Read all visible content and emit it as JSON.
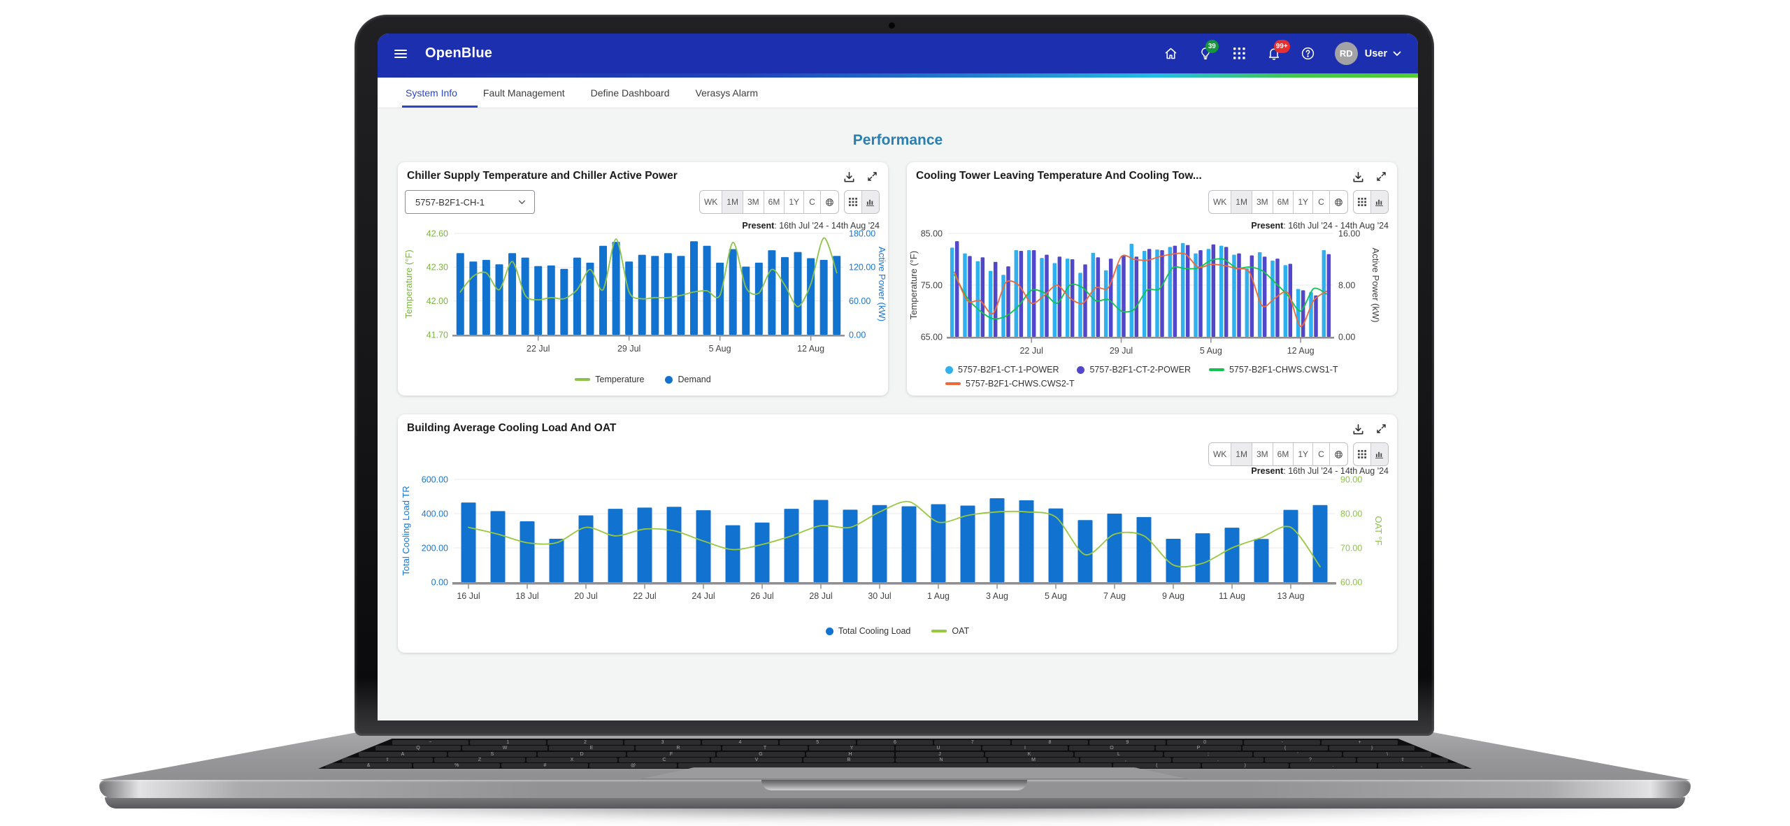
{
  "app": {
    "brand": "OpenBlue",
    "header": {
      "user_initials": "RD",
      "user_label": "User",
      "insights_badge": "39",
      "notifications_badge": "99+"
    },
    "tabs": [
      {
        "label": "System Info",
        "active": true
      },
      {
        "label": "Fault Management",
        "active": false
      },
      {
        "label": "Define Dashboard",
        "active": false
      },
      {
        "label": "Verasys Alarm",
        "active": false
      }
    ],
    "page_title": "Performance",
    "toolbar": {
      "ranges": [
        "WK",
        "1M",
        "3M",
        "6M",
        "1Y",
        "C"
      ],
      "selected_range": "1M",
      "present_label": "Present",
      "present_value": ": 16th Jul '24 - 14th Aug '24"
    },
    "colors": {
      "header_blue": "#1c2fae",
      "tab_active_blue": "#2b46c8",
      "page_title_teal": "#2a7fb0",
      "bar_blue": "#1272cf",
      "line_green": "#8bc34a"
    }
  },
  "chart_data": [
    {
      "id": "c1",
      "type": "bar",
      "title": "Chiller Supply Temperature and Chiller Active Power",
      "selector_value": "5757-B2F1-CH-1",
      "left_axis": {
        "title": "Temperature (°F)",
        "ticks": [
          "42.60",
          "42.30",
          "42.00",
          "41.70"
        ],
        "min": 41.7,
        "max": 42.6,
        "color": "#7cb342"
      },
      "right_axis": {
        "title": "Active Power (kW)",
        "ticks": [
          "180.00",
          "120.00",
          "60.00",
          "0.00"
        ],
        "min": 0,
        "max": 180,
        "color": "#1976d2"
      },
      "x_labels": [
        {
          "label": "22 Jul",
          "i": 6
        },
        {
          "label": "29 Jul",
          "i": 13
        },
        {
          "label": "5 Aug",
          "i": 20
        },
        {
          "label": "12 Aug",
          "i": 27
        }
      ],
      "series": [
        {
          "name": "Demand",
          "type": "bar",
          "axis": "right",
          "color": "#1272cf",
          "values": [
            145,
            130,
            133,
            125,
            145,
            137,
            122,
            123,
            117,
            137,
            128,
            158,
            165,
            130,
            142,
            140,
            145,
            140,
            166,
            158,
            128,
            152,
            121,
            128,
            150,
            138,
            147,
            136,
            133,
            140
          ]
        },
        {
          "name": "Temperature",
          "type": "line",
          "axis": "left",
          "color": "#8bc34a",
          "values": [
            42.08,
            42.22,
            42.25,
            42.1,
            42.35,
            42.05,
            42.01,
            42.03,
            42.02,
            42.1,
            42.28,
            42.1,
            42.55,
            42.08,
            42.02,
            42.03,
            42.03,
            42.05,
            42.08,
            42.09,
            42.05,
            42.52,
            42.12,
            42.07,
            42.28,
            42.14,
            41.95,
            42.15,
            42.56,
            42.25
          ]
        }
      ],
      "legend": [
        {
          "label": "Temperature",
          "marker": "line",
          "color": "#8bc34a"
        },
        {
          "label": "Demand",
          "marker": "dot",
          "color": "#1272cf"
        }
      ]
    },
    {
      "id": "c2",
      "type": "bar",
      "title": "Cooling Tower Leaving Temperature And Cooling Tow...",
      "left_axis": {
        "title": "Temperature (°F)",
        "ticks": [
          "85.00",
          "75.00",
          "65.00"
        ],
        "min": 65,
        "max": 85,
        "color": "#3f3f41"
      },
      "right_axis": {
        "title": "Active Power (kW)",
        "ticks": [
          "16.00",
          "8.00",
          "0.00"
        ],
        "min": 0,
        "max": 16,
        "color": "#3f3f41"
      },
      "x_labels": [
        {
          "label": "22 Jul",
          "i": 6
        },
        {
          "label": "29 Jul",
          "i": 13
        },
        {
          "label": "5 Aug",
          "i": 20
        },
        {
          "label": "12 Aug",
          "i": 27
        }
      ],
      "series": [
        {
          "name": "5757-B2F1-CT-1-POWER",
          "type": "bar",
          "axis": "right",
          "color": "#2fb1ef",
          "values": [
            13.8,
            12.9,
            11.7,
            10.2,
            9.6,
            13.4,
            13.4,
            12.2,
            11.4,
            12.1,
            9.9,
            13.0,
            10.3,
            11.2,
            14.4,
            13.3,
            13.5,
            13.9,
            14.5,
            12.9,
            13.6,
            14.1,
            12.7,
            10.6,
            13.1,
            11.8,
            11.1,
            7.4,
            6.9,
            13.4
          ]
        },
        {
          "name": "5757-B2F1-CT-2-POWER",
          "type": "bar",
          "axis": "right",
          "color": "#5247c9",
          "values": [
            14.8,
            12.5,
            12.3,
            11.6,
            10.9,
            13.3,
            13.4,
            12.7,
            12.4,
            12.0,
            11.2,
            12.3,
            12.1,
            12.6,
            12.4,
            13.6,
            13.4,
            14.1,
            14.2,
            13.4,
            14.3,
            13.9,
            12.9,
            12.6,
            12.4,
            12.1,
            11.3,
            7.2,
            6.4,
            12.8
          ]
        },
        {
          "name": "5757-B2F1-CHWS.CWS1-T",
          "type": "line",
          "axis": "left",
          "color": "#10c24e",
          "values": [
            77.0,
            72.5,
            70.0,
            68.5,
            69.0,
            71.0,
            74.0,
            73.5,
            71.5,
            75.0,
            74.5,
            72.0,
            72.2,
            70.0,
            70.3,
            74.0,
            74.3,
            78.3,
            78.2,
            78.3,
            79.8,
            80.0,
            78.3,
            78.5,
            77.8,
            75.5,
            73.0,
            70.0,
            74.3,
            73.3
          ]
        },
        {
          "name": "5757-B2F1-CHWS.CWS2-T",
          "type": "line",
          "axis": "left",
          "color": "#f0683a",
          "values": [
            77.5,
            72.0,
            72.0,
            69.5,
            75.5,
            75.0,
            71.5,
            73.0,
            75.0,
            72.5,
            71.5,
            74.5,
            74.5,
            80.5,
            80.0,
            79.8,
            80.5,
            81.0,
            81.0,
            78.5,
            79.0,
            78.8,
            78.2,
            77.5,
            71.0,
            72.5,
            73.5,
            67.0,
            72.0,
            73.8
          ]
        }
      ],
      "legend": [
        {
          "label": "5757-B2F1-CT-1-POWER",
          "marker": "dot",
          "color": "#2fb1ef"
        },
        {
          "label": "5757-B2F1-CT-2-POWER",
          "marker": "dot",
          "color": "#5247c9"
        },
        {
          "label": "5757-B2F1-CHWS.CWS1-T",
          "marker": "line",
          "color": "#10c24e"
        },
        {
          "label": "5757-B2F1-CHWS.CWS2-T",
          "marker": "line",
          "color": "#f0683a"
        }
      ]
    },
    {
      "id": "c3",
      "type": "bar",
      "title": "Building Average Cooling Load And OAT",
      "left_axis": {
        "title": "Total Cooling Load TR",
        "ticks": [
          "600.00",
          "400.00",
          "200.00",
          "0.00"
        ],
        "min": 0,
        "max": 600,
        "color": "#1976d2"
      },
      "right_axis": {
        "title": "OAT °F",
        "ticks": [
          "90.00",
          "80.00",
          "70.00",
          "60.00"
        ],
        "min": 60,
        "max": 90,
        "color": "#8bc34a"
      },
      "x_labels": [
        {
          "label": "16 Jul",
          "i": 0
        },
        {
          "label": "18 Jul",
          "i": 2
        },
        {
          "label": "20 Jul",
          "i": 4
        },
        {
          "label": "22 Jul",
          "i": 6
        },
        {
          "label": "24 Jul",
          "i": 8
        },
        {
          "label": "26 Jul",
          "i": 10
        },
        {
          "label": "28 Jul",
          "i": 12
        },
        {
          "label": "30 Jul",
          "i": 14
        },
        {
          "label": "1 Aug",
          "i": 16
        },
        {
          "label": "3 Aug",
          "i": 18
        },
        {
          "label": "5 Aug",
          "i": 20
        },
        {
          "label": "7 Aug",
          "i": 22
        },
        {
          "label": "9 Aug",
          "i": 24
        },
        {
          "label": "11 Aug",
          "i": 26
        },
        {
          "label": "13 Aug",
          "i": 28
        }
      ],
      "series": [
        {
          "name": "Total Cooling Load",
          "type": "bar",
          "axis": "left",
          "color": "#1272cf",
          "values": [
            465,
            415,
            355,
            253,
            390,
            428,
            435,
            440,
            420,
            332,
            348,
            428,
            480,
            423,
            450,
            443,
            455,
            447,
            490,
            478,
            430,
            362,
            400,
            380,
            253,
            285,
            318,
            252,
            422,
            450
          ]
        },
        {
          "name": "OAT",
          "type": "line",
          "axis": "right",
          "color": "#97c83e",
          "values": [
            76,
            74,
            71.5,
            71.5,
            76,
            73.5,
            75.5,
            75,
            72,
            69.5,
            71,
            73.5,
            76.5,
            76,
            80.5,
            83.5,
            77.5,
            79.5,
            80.5,
            80.5,
            79,
            68,
            74,
            73.5,
            65,
            65.5,
            70,
            73,
            76,
            64.5
          ]
        }
      ],
      "legend": [
        {
          "label": "Total Cooling Load",
          "marker": "dot",
          "color": "#1272cf"
        },
        {
          "label": "OAT",
          "marker": "line",
          "color": "#97c83e"
        }
      ]
    }
  ],
  "laptop": {
    "keyboard_rows": [
      [
        "~",
        "1",
        "2",
        "3",
        "4",
        "5",
        "6",
        "7",
        "8",
        "9",
        "0",
        "-",
        "+"
      ],
      [
        "Q",
        "W",
        "E",
        "R",
        "T",
        "Y",
        "U",
        "I",
        "O",
        "P",
        "{",
        "}"
      ],
      [
        "A",
        "S",
        "D",
        "F",
        "G",
        "H",
        "J",
        "K",
        "L",
        ";",
        "'",
        "\\"
      ],
      [
        "⇧",
        "Z",
        "X",
        "C",
        "V",
        "B",
        "N",
        "M",
        ",",
        ".",
        "?",
        "⇧"
      ],
      [
        "&",
        "%",
        "#",
        "@",
        "space",
        "(",
        ")",
        ".",
        ","
      ]
    ]
  }
}
